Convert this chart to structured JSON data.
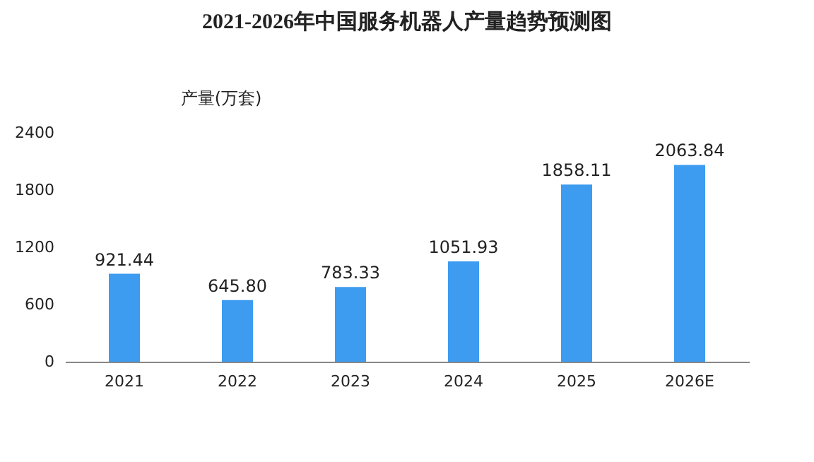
{
  "chart_data": {
    "type": "bar",
    "title": "2021-2026年中国服务机器人产量趋势预测图",
    "ylabel": "产量(万套)",
    "categories": [
      "2021",
      "2022",
      "2023",
      "2024",
      "2025",
      "2026E"
    ],
    "values": [
      921.44,
      645.8,
      783.33,
      1051.93,
      1858.11,
      2063.84
    ],
    "value_labels": [
      "921.44",
      "645.80",
      "783.33",
      "1051.93",
      "1858.11",
      "2063.84"
    ],
    "color": "#3d9cf0",
    "ylim": [
      0,
      2400
    ],
    "yticks": [
      0,
      600,
      1200,
      1800,
      2400
    ],
    "grid": false
  }
}
